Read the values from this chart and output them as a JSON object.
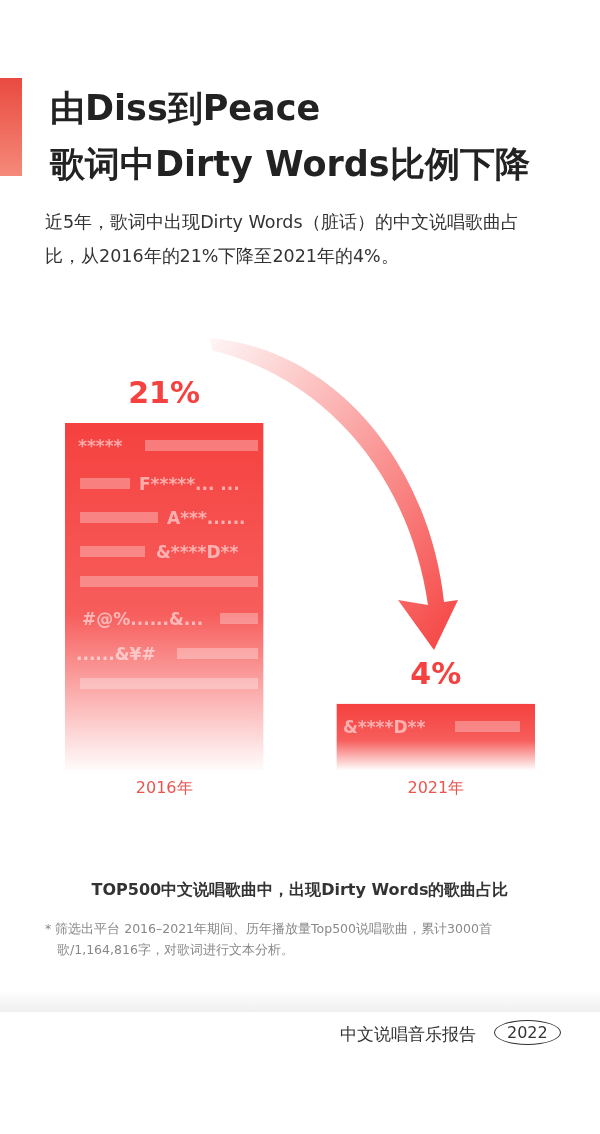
{
  "chart_data": {
    "type": "bar",
    "title": "由Diss到Peace\n歌词中Dirty Words比例下降",
    "subtitle": "近5年，歌词中出现Dirty Words（脏话）的中文说唱歌曲占比，从2016年的21%下降至2021年的4%。",
    "categories": [
      "2016年",
      "2021年"
    ],
    "values": [
      21,
      4
    ],
    "color": "#f5413f",
    "value_labels": [
      "21%",
      "4%"
    ],
    "annotations": [
      "*****",
      "F*****... ...",
      "A***......",
      "&****D**",
      "#@%......&...",
      "......&¥#",
      "&****D**",
      "TOP500中文说唱歌曲中，出现Dirty Words的歌曲占比",
      "* 筛选出平台 2016–2021年期间、历年播放量Top500说唱歌曲，累计3000首歌/1,164,816字，对歌词进行文本分析。",
      "中文说唱音乐报告",
      "2022"
    ]
  }
}
